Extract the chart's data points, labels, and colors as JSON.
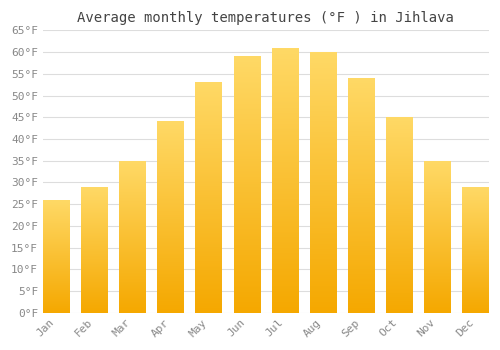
{
  "title": "Average monthly temperatures (°F ) in Jihlava",
  "months": [
    "Jan",
    "Feb",
    "Mar",
    "Apr",
    "May",
    "Jun",
    "Jul",
    "Aug",
    "Sep",
    "Oct",
    "Nov",
    "Dec"
  ],
  "values": [
    26,
    29,
    35,
    44,
    53,
    59,
    61,
    60,
    54,
    45,
    35,
    29
  ],
  "bar_color_bottom": "#F5A800",
  "bar_color_top": "#FFD966",
  "ylim": [
    0,
    65
  ],
  "yticks": [
    0,
    5,
    10,
    15,
    20,
    25,
    30,
    35,
    40,
    45,
    50,
    55,
    60,
    65
  ],
  "ylabel_suffix": "°F",
  "background_color": "#ffffff",
  "grid_color": "#dddddd",
  "title_fontsize": 10,
  "tick_fontsize": 8,
  "font_family": "monospace"
}
